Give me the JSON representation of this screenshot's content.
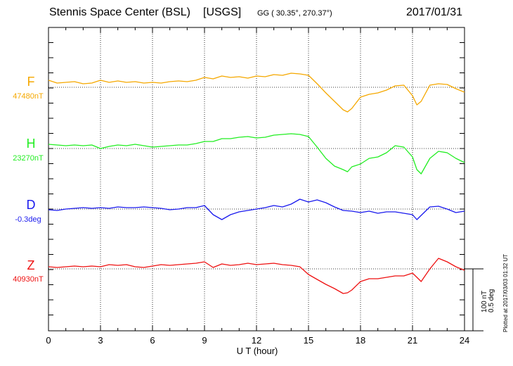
{
  "header": {
    "station": "Stennis Space Center (BSL)",
    "agency": "[USGS]",
    "coords": "GG ( 30.35°, 270.37°)",
    "date": "2017/01/31"
  },
  "footer": {
    "plotted": "Plotted at 2017/03/03 01:32 UT"
  },
  "scale_bar": {
    "nt": "100 nT",
    "deg": "0.5 deg"
  },
  "chart_data": {
    "type": "line",
    "title": "Stennis Space Center (BSL)  [USGS]",
    "xlabel": "U T (hour)",
    "xlim": [
      0,
      24
    ],
    "x_ticks": [
      0,
      3,
      6,
      9,
      12,
      15,
      18,
      21,
      24
    ],
    "grid": true,
    "series": [
      {
        "name": "F",
        "baseline_label": "47480nT",
        "color": "#f5a800",
        "x": [
          0,
          0.5,
          1,
          1.5,
          2,
          2.5,
          3,
          3.5,
          4,
          4.5,
          5,
          5.5,
          6,
          6.5,
          7,
          7.5,
          8,
          8.5,
          9,
          9.5,
          10,
          10.5,
          11,
          11.5,
          12,
          12.5,
          13,
          13.5,
          14,
          14.5,
          15,
          15.5,
          16,
          16.5,
          17,
          17.25,
          17.5,
          18,
          18.5,
          19,
          19.5,
          20,
          20.5,
          21,
          21.25,
          21.5,
          22,
          22.5,
          23,
          23.5,
          24
        ],
        "y": [
          10,
          6,
          7,
          8,
          5,
          6,
          10,
          7,
          9,
          7,
          8,
          6,
          7,
          6,
          8,
          9,
          8,
          10,
          14,
          12,
          16,
          14,
          15,
          13,
          16,
          15,
          18,
          17,
          20,
          19,
          17,
          5,
          -8,
          -20,
          -32,
          -35,
          -30,
          -14,
          -10,
          -8,
          -4,
          2,
          3,
          -12,
          -25,
          -20,
          3,
          5,
          4,
          -2,
          -7
        ]
      },
      {
        "name": "H",
        "baseline_label": "23270nT",
        "color": "#22ee22",
        "x": [
          0,
          0.5,
          1,
          1.5,
          2,
          2.5,
          3,
          3.5,
          4,
          4.5,
          5,
          5.5,
          6,
          6.5,
          7,
          7.5,
          8,
          8.5,
          9,
          9.5,
          10,
          10.5,
          11,
          11.5,
          12,
          12.5,
          13,
          13.5,
          14,
          14.5,
          15,
          15.5,
          16,
          16.5,
          17,
          17.25,
          17.5,
          18,
          18.5,
          19,
          19.5,
          20,
          20.5,
          21,
          21.25,
          21.5,
          22,
          22.5,
          23,
          23.5,
          24
        ],
        "y": [
          6,
          5,
          4,
          5,
          4,
          5,
          0,
          3,
          5,
          4,
          6,
          4,
          2,
          3,
          4,
          5,
          5,
          7,
          10,
          10,
          14,
          14,
          16,
          17,
          15,
          16,
          19,
          20,
          21,
          20,
          17,
          2,
          -14,
          -25,
          -30,
          -33,
          -26,
          -22,
          -14,
          -12,
          -6,
          4,
          2,
          -12,
          -30,
          -36,
          -14,
          -4,
          -6,
          -14,
          -20
        ]
      },
      {
        "name": "D",
        "baseline_label": "-0.3deg",
        "color": "#1a1aee",
        "x": [
          0,
          0.5,
          1,
          1.5,
          2,
          2.5,
          3,
          3.5,
          4,
          4.5,
          5,
          5.5,
          6,
          6.5,
          7,
          7.5,
          8,
          8.5,
          9,
          9.5,
          10,
          10.5,
          11,
          11.5,
          12,
          12.5,
          13,
          13.5,
          14,
          14.5,
          15,
          15.5,
          16,
          16.5,
          17,
          17.5,
          18,
          18.5,
          19,
          19.5,
          20,
          20.5,
          21,
          21.25,
          21.5,
          22,
          22.5,
          23,
          23.5,
          24
        ],
        "y": [
          -1,
          -2,
          0,
          1,
          2,
          1,
          2,
          1,
          3,
          2,
          2,
          3,
          2,
          1,
          -1,
          0,
          2,
          2,
          5,
          -8,
          -15,
          -8,
          -4,
          -2,
          0,
          2,
          5,
          3,
          7,
          14,
          10,
          13,
          9,
          3,
          -2,
          -3,
          -5,
          -3,
          -6,
          -4,
          -4,
          -6,
          -8,
          -15,
          -9,
          3,
          4,
          0,
          -5,
          -3
        ]
      },
      {
        "name": "Z",
        "baseline_label": "40930nT",
        "color": "#ee1111",
        "x": [
          0,
          0.5,
          1,
          1.5,
          2,
          2.5,
          3,
          3.5,
          4,
          4.5,
          5,
          5.5,
          6,
          6.5,
          7,
          7.5,
          8,
          8.5,
          9,
          9.5,
          10,
          10.5,
          11,
          11.5,
          12,
          12.5,
          13,
          13.5,
          14,
          14.5,
          15,
          15.5,
          16,
          16.5,
          17,
          17.25,
          17.5,
          18,
          18.5,
          19,
          19.5,
          20,
          20.5,
          21,
          21.25,
          21.5,
          22,
          22.5,
          23,
          23.5,
          24
        ],
        "y": [
          3,
          2,
          3,
          4,
          3,
          4,
          3,
          6,
          5,
          6,
          3,
          2,
          4,
          6,
          5,
          6,
          7,
          8,
          10,
          2,
          7,
          5,
          6,
          8,
          6,
          7,
          8,
          6,
          5,
          3,
          -8,
          -15,
          -22,
          -28,
          -35,
          -34,
          -30,
          -18,
          -14,
          -14,
          -12,
          -10,
          -10,
          -6,
          -12,
          -18,
          0,
          15,
          10,
          3,
          -2
        ]
      }
    ]
  }
}
